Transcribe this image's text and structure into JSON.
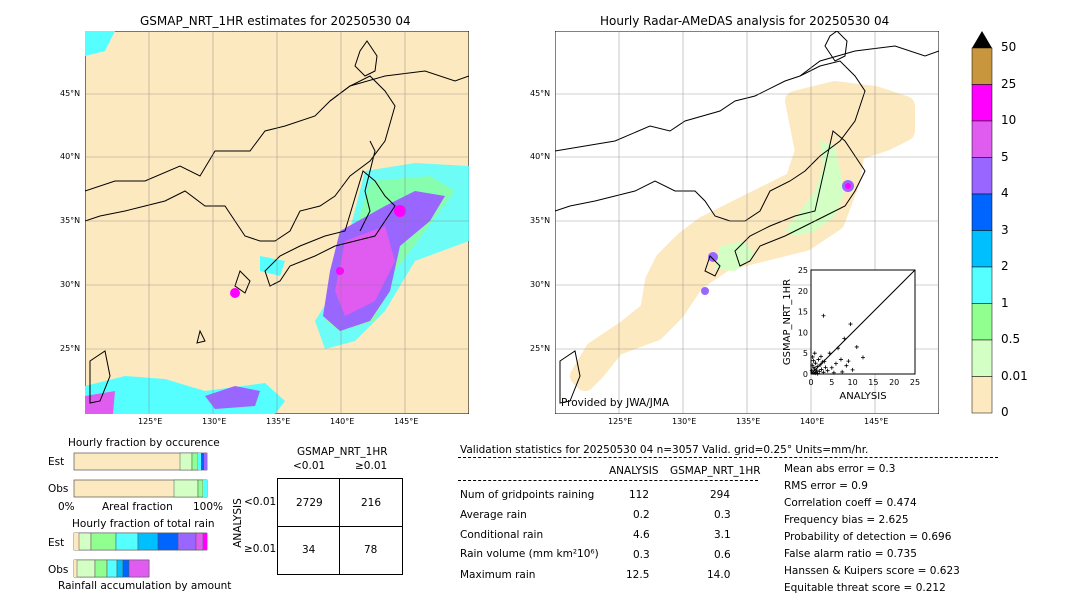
{
  "left_map": {
    "title": "GSMAP_NRT_1HR estimates for 20250530 04",
    "lat_ticks": [
      "45°N",
      "40°N",
      "35°N",
      "30°N",
      "25°N"
    ],
    "lon_ticks": [
      "125°E",
      "130°E",
      "135°E",
      "140°E",
      "145°E"
    ]
  },
  "right_map": {
    "title": "Hourly Radar-AMeDAS analysis for 20250530 04",
    "lat_ticks": [
      "45°N",
      "40°N",
      "35°N",
      "30°N",
      "25°N"
    ],
    "lon_ticks": [
      "125°E",
      "130°E",
      "135°E",
      "140°E",
      "145°E"
    ],
    "credit": "Provided by JWA/JMA"
  },
  "colorbar": {
    "labels": [
      "50",
      "25",
      "10",
      "5",
      "4",
      "3",
      "2",
      "1",
      "0.5",
      "0.01",
      "0"
    ],
    "colors": [
      "#c8963c",
      "#ff00ff",
      "#e05cf0",
      "#9966ff",
      "#0064ff",
      "#00bfff",
      "#55ffff",
      "#90ff90",
      "#d4ffc4",
      "#fde9c0"
    ]
  },
  "fraction_occurrence": {
    "title": "Hourly fraction by occurence",
    "rows": [
      "Est",
      "Obs"
    ],
    "axis_left": "0%",
    "axis_mid": "Areal fraction",
    "axis_right": "100%"
  },
  "fraction_rain": {
    "title": "Hourly fraction of total rain",
    "rows": [
      "Est",
      "Obs"
    ],
    "footer": "Rainfall accumulation by amount"
  },
  "contingency": {
    "title": "GSMAP_NRT_1HR",
    "col_labels": [
      "<0.01",
      "≥0.01"
    ],
    "row_axis": "ANALYSIS",
    "row_labels": [
      "<0.01",
      "≥0.01"
    ],
    "cells": [
      [
        "2729",
        "216"
      ],
      [
        "34",
        "78"
      ]
    ]
  },
  "validation": {
    "header": "Validation statistics for 20250530 04  n=3057 Valid. grid=0.25° Units=mm/hr.",
    "col_analysis": "ANALYSIS",
    "col_gsmap": "GSMAP_NRT_1HR",
    "rows": [
      {
        "label": "Num of gridpoints raining",
        "analysis": "112",
        "gsmap": "294"
      },
      {
        "label": "Average rain",
        "analysis": "0.2",
        "gsmap": "0.3"
      },
      {
        "label": "Conditional rain",
        "analysis": "4.6",
        "gsmap": "3.1"
      },
      {
        "label": "Rain volume (mm km²10⁶)",
        "analysis": "0.3",
        "gsmap": "0.6"
      },
      {
        "label": "Maximum rain",
        "analysis": "12.5",
        "gsmap": "14.0"
      }
    ],
    "scores": [
      "Mean abs error =    0.3",
      "RMS error =    0.9",
      "Correlation coeff =  0.474",
      "Frequency bias =  2.625",
      "Probability of detection =  0.696",
      "False alarm ratio =  0.735",
      "Hanssen & Kuipers score =  0.623",
      "Equitable threat score =  0.212"
    ]
  },
  "chart_data": [
    {
      "type": "scatter",
      "xlabel": "ANALYSIS",
      "ylabel": "GSMAP_NRT_1HR",
      "xlim": [
        0,
        25
      ],
      "ylim": [
        0,
        25
      ],
      "ticks": [
        "0",
        "5",
        "10",
        "15",
        "20",
        "25"
      ],
      "points": [
        [
          0.5,
          0.3
        ],
        [
          0.8,
          1.2
        ],
        [
          1.2,
          0.4
        ],
        [
          0.3,
          2.1
        ],
        [
          1.5,
          1.8
        ],
        [
          2.0,
          0.6
        ],
        [
          0.6,
          3.2
        ],
        [
          1.1,
          2.6
        ],
        [
          2.5,
          1.1
        ],
        [
          3.0,
          0.4
        ],
        [
          0.4,
          4.1
        ],
        [
          1.8,
          3.5
        ],
        [
          2.2,
          2.2
        ],
        [
          3.5,
          1.6
        ],
        [
          0.9,
          5.0
        ],
        [
          4.0,
          0.8
        ],
        [
          1.4,
          0.9
        ],
        [
          0.7,
          1.6
        ],
        [
          2.8,
          2.9
        ],
        [
          1.0,
          0.2
        ],
        [
          5.0,
          1.5
        ],
        [
          6.0,
          2.5
        ],
        [
          7.2,
          3.5
        ],
        [
          8.5,
          2.0
        ],
        [
          4.5,
          5.0
        ],
        [
          9.0,
          3.1
        ],
        [
          10.0,
          1.0
        ],
        [
          12.5,
          4.0
        ],
        [
          8.0,
          8.5
        ],
        [
          6.5,
          6.2
        ],
        [
          9.5,
          12.0
        ],
        [
          3.0,
          14.0
        ],
        [
          11.0,
          6.5
        ],
        [
          7.5,
          0.5
        ],
        [
          5.5,
          0.3
        ],
        [
          0.2,
          0.8
        ],
        [
          1.6,
          0.1
        ],
        [
          2.4,
          4.2
        ],
        [
          3.2,
          3.0
        ]
      ]
    }
  ]
}
